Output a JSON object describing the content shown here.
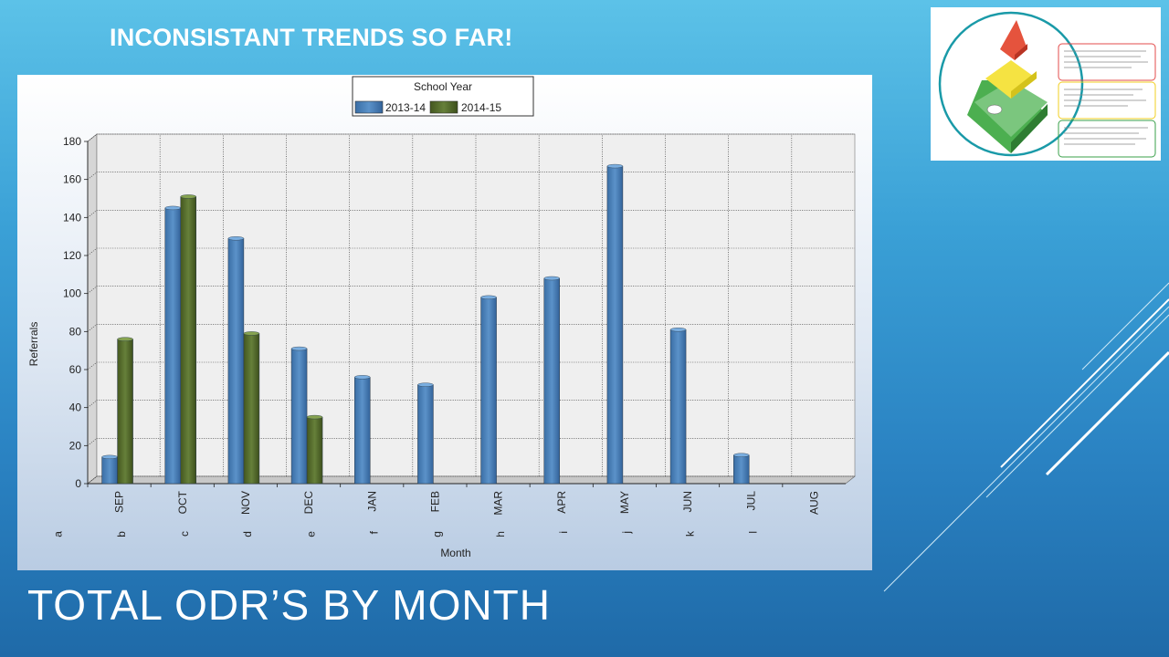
{
  "slide": {
    "subtitle": "INCONSISTANT TRENDS SO FAR!",
    "title": "TOTAL ODR’S BY MONTH"
  },
  "colors": {
    "series_2013_14": "#4a7fb5",
    "series_2014_15": "#556b2f",
    "plot_bg": "#ececec"
  },
  "chart_data": {
    "type": "bar",
    "categories": [
      "SEP",
      "OCT",
      "NOV",
      "DEC",
      "JAN",
      "FEB",
      "MAR",
      "APR",
      "MAY",
      "JUN",
      "JUL",
      "AUG"
    ],
    "category_letters": [
      "a",
      "b",
      "c",
      "d",
      "e",
      "f",
      "g",
      "h",
      "i",
      "j",
      "k",
      "l"
    ],
    "series": [
      {
        "name": "2013-14",
        "values": [
          14,
          145,
          129,
          71,
          56,
          52,
          98,
          108,
          167,
          81,
          15,
          null
        ]
      },
      {
        "name": "2014-15",
        "values": [
          76,
          151,
          79,
          35,
          null,
          null,
          null,
          null,
          null,
          null,
          null,
          null
        ]
      }
    ],
    "legend_title": "School Year",
    "legend_position": "top-center",
    "xlabel": "Month",
    "ylabel": "Referrals",
    "ylim": [
      0,
      180
    ],
    "yticks": [
      0,
      20,
      40,
      60,
      80,
      100,
      120,
      140,
      160,
      180
    ],
    "grid": true
  },
  "pyramid_image": {
    "icon": "pbis-pyramid-graphic"
  }
}
